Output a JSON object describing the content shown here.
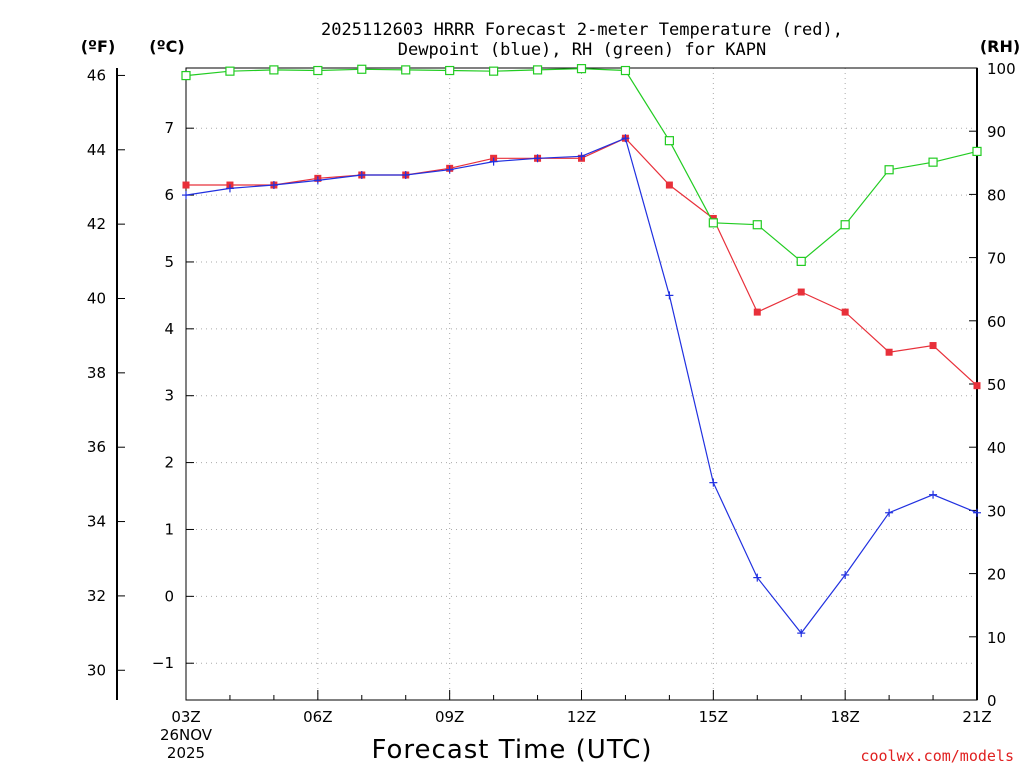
{
  "chart_data": {
    "type": "line",
    "title_lines": [
      "2025112603 HRRR Forecast 2-meter Temperature (red),",
      "Dewpoint (blue), RH (green) for KAPN"
    ],
    "xlabel": "Forecast Time (UTC)",
    "x_start_hour": 3,
    "x_end_hour": 21,
    "x_ticks": [
      {
        "hour": 3,
        "label": "03Z"
      },
      {
        "hour": 6,
        "label": "06Z"
      },
      {
        "hour": 9,
        "label": "09Z"
      },
      {
        "hour": 12,
        "label": "12Z"
      },
      {
        "hour": 15,
        "label": "15Z"
      },
      {
        "hour": 18,
        "label": "18Z"
      },
      {
        "hour": 21,
        "label": "21Z"
      }
    ],
    "date_lines": [
      "26NOV",
      "2025"
    ],
    "credit": "coolwx.com/models",
    "axes": {
      "celsius": {
        "label": "(ºC)",
        "range": [
          -1.55,
          7.9
        ],
        "ticks": [
          -1,
          0,
          1,
          2,
          3,
          4,
          5,
          6,
          7
        ],
        "tick_labels": [
          "−1",
          "0",
          "1",
          "2",
          "3",
          "4",
          "5",
          "6",
          "7"
        ]
      },
      "fahrenheit": {
        "label": "(ºF)",
        "range": [
          29.2,
          46.2
        ],
        "ticks": [
          30,
          32,
          34,
          36,
          38,
          40,
          42,
          44,
          46
        ],
        "tick_labels": [
          "30",
          "32",
          "34",
          "36",
          "38",
          "40",
          "42",
          "44",
          "46"
        ]
      },
      "rh": {
        "label": "(RH)",
        "range": [
          0,
          100
        ],
        "ticks": [
          0,
          10,
          20,
          30,
          40,
          50,
          60,
          70,
          80,
          90,
          100
        ],
        "tick_labels": [
          "0",
          "10",
          "20",
          "30",
          "40",
          "50",
          "60",
          "70",
          "80",
          "90",
          "100"
        ]
      }
    },
    "grid": true,
    "series": [
      {
        "name": "Temperature",
        "axis": "celsius",
        "color": "#e8303a",
        "marker": "filled-square",
        "hours": [
          3,
          4,
          5,
          6,
          7,
          8,
          9,
          10,
          11,
          12,
          13,
          14,
          15,
          16,
          17,
          18,
          19,
          20,
          21
        ],
        "values": [
          6.15,
          6.15,
          6.15,
          6.25,
          6.3,
          6.3,
          6.4,
          6.55,
          6.55,
          6.55,
          6.85,
          6.15,
          5.65,
          4.25,
          4.55,
          4.25,
          3.65,
          3.75,
          3.15
        ]
      },
      {
        "name": "Dewpoint",
        "axis": "celsius",
        "color": "#2030e0",
        "marker": "plus",
        "hours": [
          3,
          4,
          5,
          6,
          7,
          8,
          9,
          10,
          11,
          12,
          13,
          14,
          15,
          16,
          17,
          18,
          19,
          20,
          21
        ],
        "values": [
          6.0,
          6.1,
          6.15,
          6.22,
          6.3,
          6.3,
          6.38,
          6.5,
          6.55,
          6.58,
          6.85,
          4.5,
          1.7,
          0.28,
          -0.55,
          0.32,
          1.25,
          1.52,
          1.25
        ]
      },
      {
        "name": "RH",
        "axis": "rh",
        "color": "#22cc22",
        "marker": "open-square",
        "hours": [
          3,
          4,
          5,
          6,
          7,
          8,
          9,
          10,
          11,
          12,
          13,
          14,
          15,
          16,
          17,
          18,
          19,
          20,
          21
        ],
        "values": [
          98.8,
          99.5,
          99.7,
          99.6,
          99.8,
          99.7,
          99.6,
          99.5,
          99.7,
          99.9,
          99.6,
          88.5,
          75.5,
          75.2,
          69.4,
          75.2,
          83.9,
          85.1,
          86.8
        ]
      }
    ]
  }
}
